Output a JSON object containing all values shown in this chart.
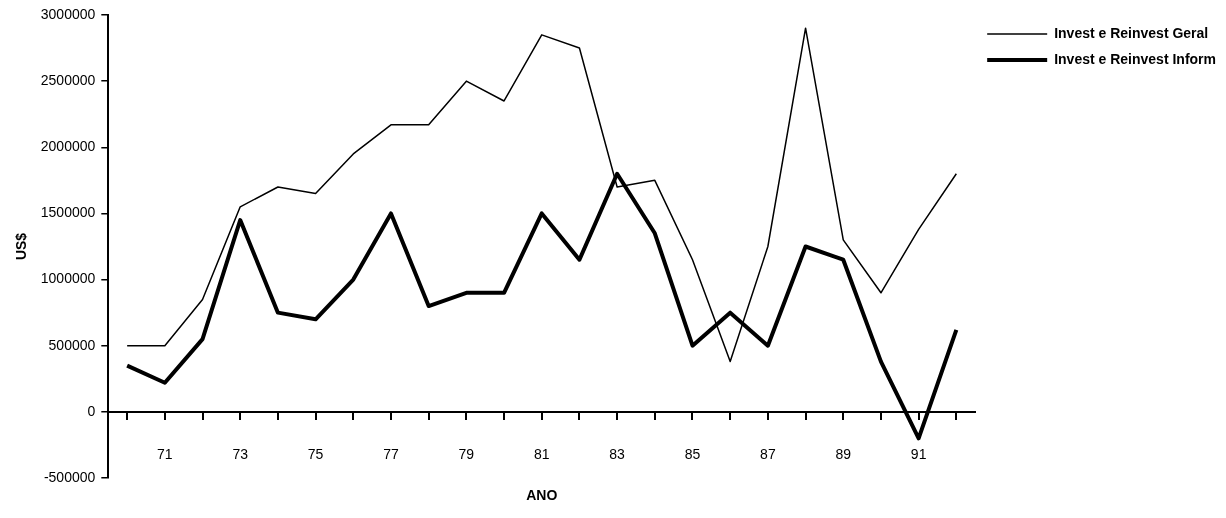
{
  "chart_data": {
    "type": "line",
    "xlabel": "ANO",
    "ylabel": "US$",
    "categories": [
      null,
      "71",
      null,
      "73",
      null,
      "75",
      null,
      "77",
      null,
      "79",
      null,
      "81",
      null,
      "83",
      null,
      "85",
      null,
      "87",
      null,
      "89",
      null,
      "91",
      null
    ],
    "series": [
      {
        "name": "Invest e Reinvest Geral",
        "color": "#000000",
        "values": [
          500000,
          500000,
          850000,
          1550000,
          1700000,
          1650000,
          1950000,
          2170000,
          2170000,
          2500000,
          2350000,
          2850000,
          2750000,
          1700000,
          1750000,
          1150000,
          380000,
          1250000,
          2900000,
          1300000,
          900000,
          1380000,
          1800000
        ]
      },
      {
        "name": "Invest e Reinvest Inform",
        "color": "#000000",
        "values": [
          350000,
          220000,
          550000,
          1450000,
          750000,
          700000,
          1000000,
          1500000,
          800000,
          900000,
          900000,
          1500000,
          1150000,
          1800000,
          1350000,
          500000,
          750000,
          500000,
          1250000,
          1150000,
          380000,
          -200000,
          620000
        ]
      }
    ],
    "ylim": [
      -500000,
      3000000
    ],
    "yticks": [
      -500000,
      0,
      500000,
      1000000,
      1500000,
      2000000,
      2500000,
      3000000
    ],
    "grid": false,
    "legend": "top right",
    "marker": "none",
    "line_style": "solid"
  }
}
